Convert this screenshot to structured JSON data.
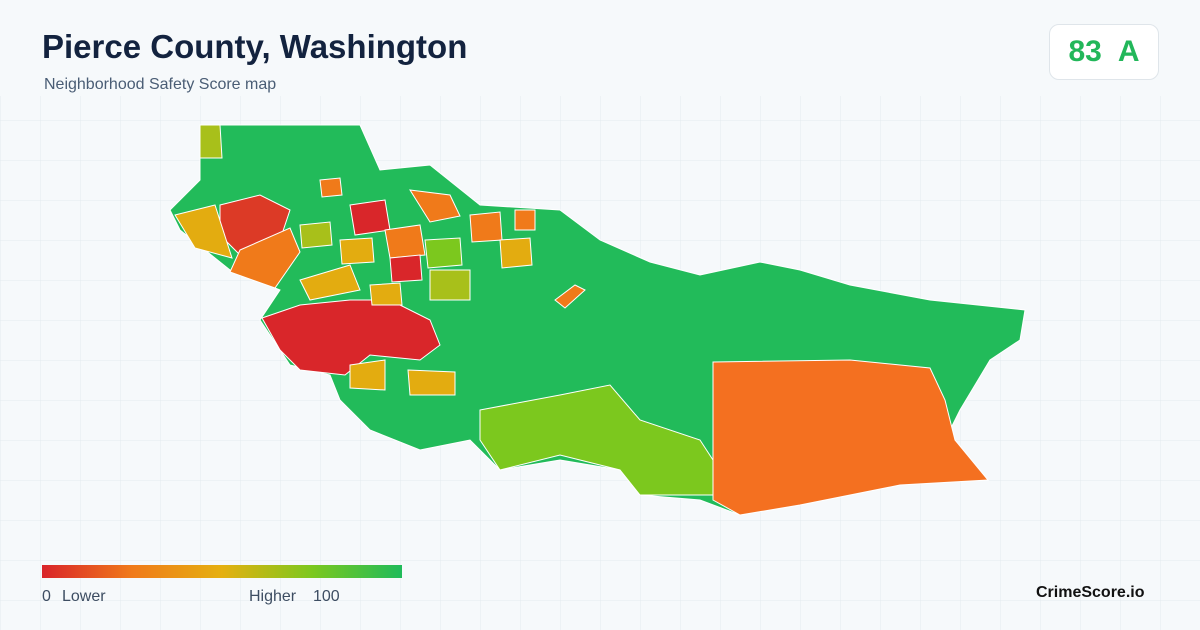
{
  "header": {
    "title": "Pierce County, Washington",
    "subtitle": "Neighborhood Safety Score map"
  },
  "score": {
    "value": 83,
    "grade": "A"
  },
  "legend": {
    "min": 0,
    "min_label": "Lower",
    "max_label": "Higher",
    "max": 100
  },
  "brand": "CrimeScore.io"
}
